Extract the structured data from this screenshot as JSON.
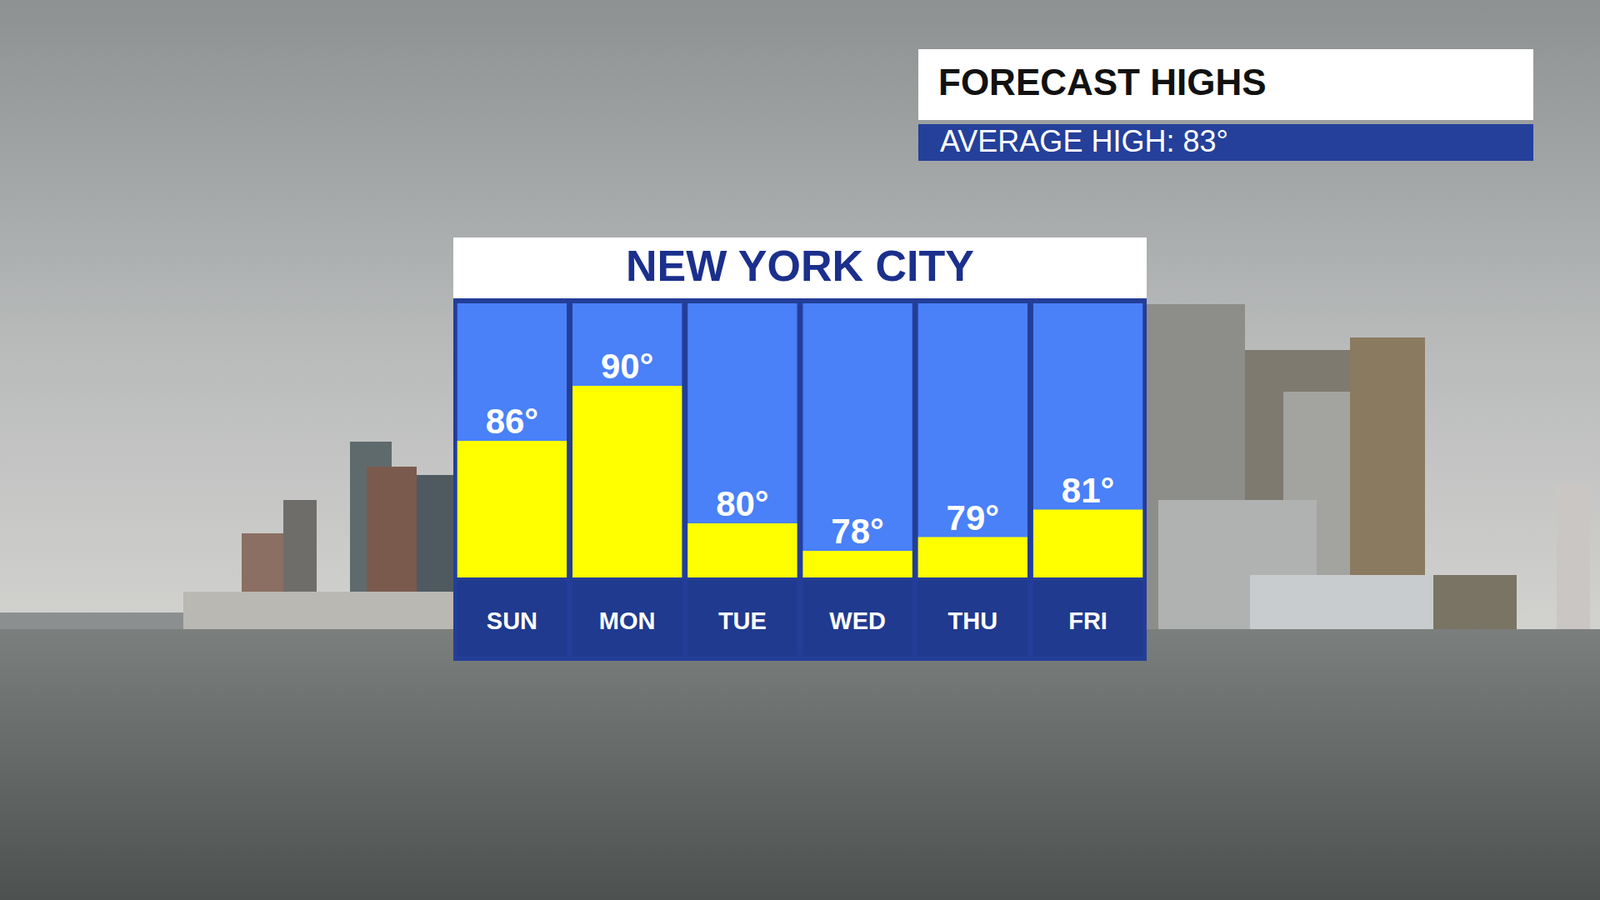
{
  "chart_data": {
    "type": "bar",
    "title": "NEW YORK CITY",
    "subtitle": "FORECAST HIGHS",
    "annotations": [
      "AVERAGE HIGH: 83°"
    ],
    "categories": [
      "SUN",
      "MON",
      "TUE",
      "WED",
      "THU",
      "FRI"
    ],
    "values": [
      86,
      90,
      80,
      78,
      79,
      81
    ],
    "value_labels": [
      "86°",
      "90°",
      "80°",
      "78°",
      "79°",
      "81°"
    ],
    "color": "#ffff00",
    "ylim": [
      76,
      96
    ],
    "yticks": [],
    "grid": false,
    "data_labels": true,
    "tick_labels": "x"
  }
}
